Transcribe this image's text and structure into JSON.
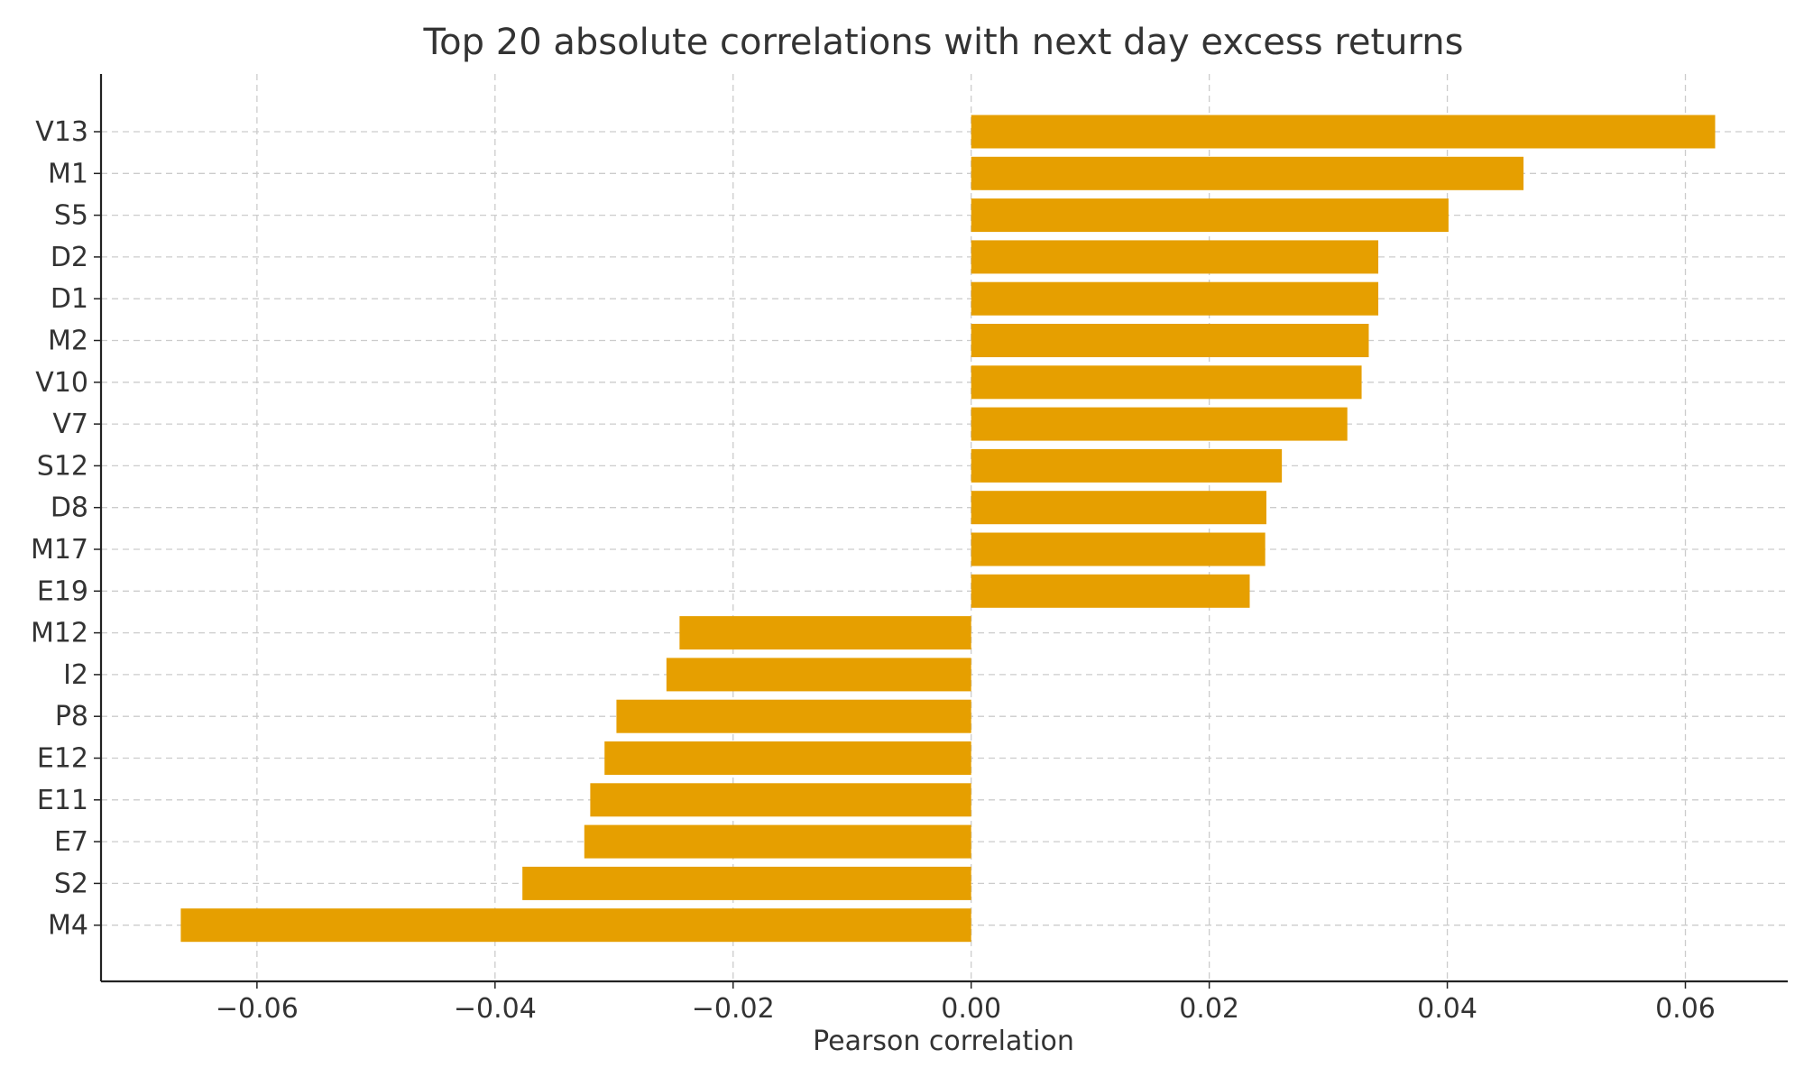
{
  "chart_data": {
    "type": "bar",
    "orientation": "horizontal",
    "title": "Top 20 absolute correlations with next day excess returns",
    "xlabel": "Pearson correlation",
    "ylabel": "",
    "xlim": [
      -0.0731,
      0.0686
    ],
    "xticks": [
      -0.06,
      -0.04,
      -0.02,
      0.0,
      0.02,
      0.04,
      0.06
    ],
    "xtick_labels": [
      "−0.06",
      "−0.04",
      "−0.02",
      "0.00",
      "0.02",
      "0.04",
      "0.06"
    ],
    "grid": true,
    "bar_color": "#E69F00",
    "categories": [
      "V13",
      "M1",
      "S5",
      "D2",
      "D1",
      "M2",
      "V10",
      "V7",
      "S12",
      "D8",
      "M17",
      "E19",
      "M12",
      "I2",
      "P8",
      "E12",
      "E11",
      "E7",
      "S2",
      "M4"
    ],
    "values": [
      0.0625,
      0.0464,
      0.0401,
      0.0342,
      0.0342,
      0.0334,
      0.0328,
      0.0316,
      0.0261,
      0.0248,
      0.0247,
      0.0234,
      -0.0245,
      -0.0256,
      -0.0298,
      -0.0308,
      -0.032,
      -0.0325,
      -0.0377,
      -0.0664
    ]
  }
}
